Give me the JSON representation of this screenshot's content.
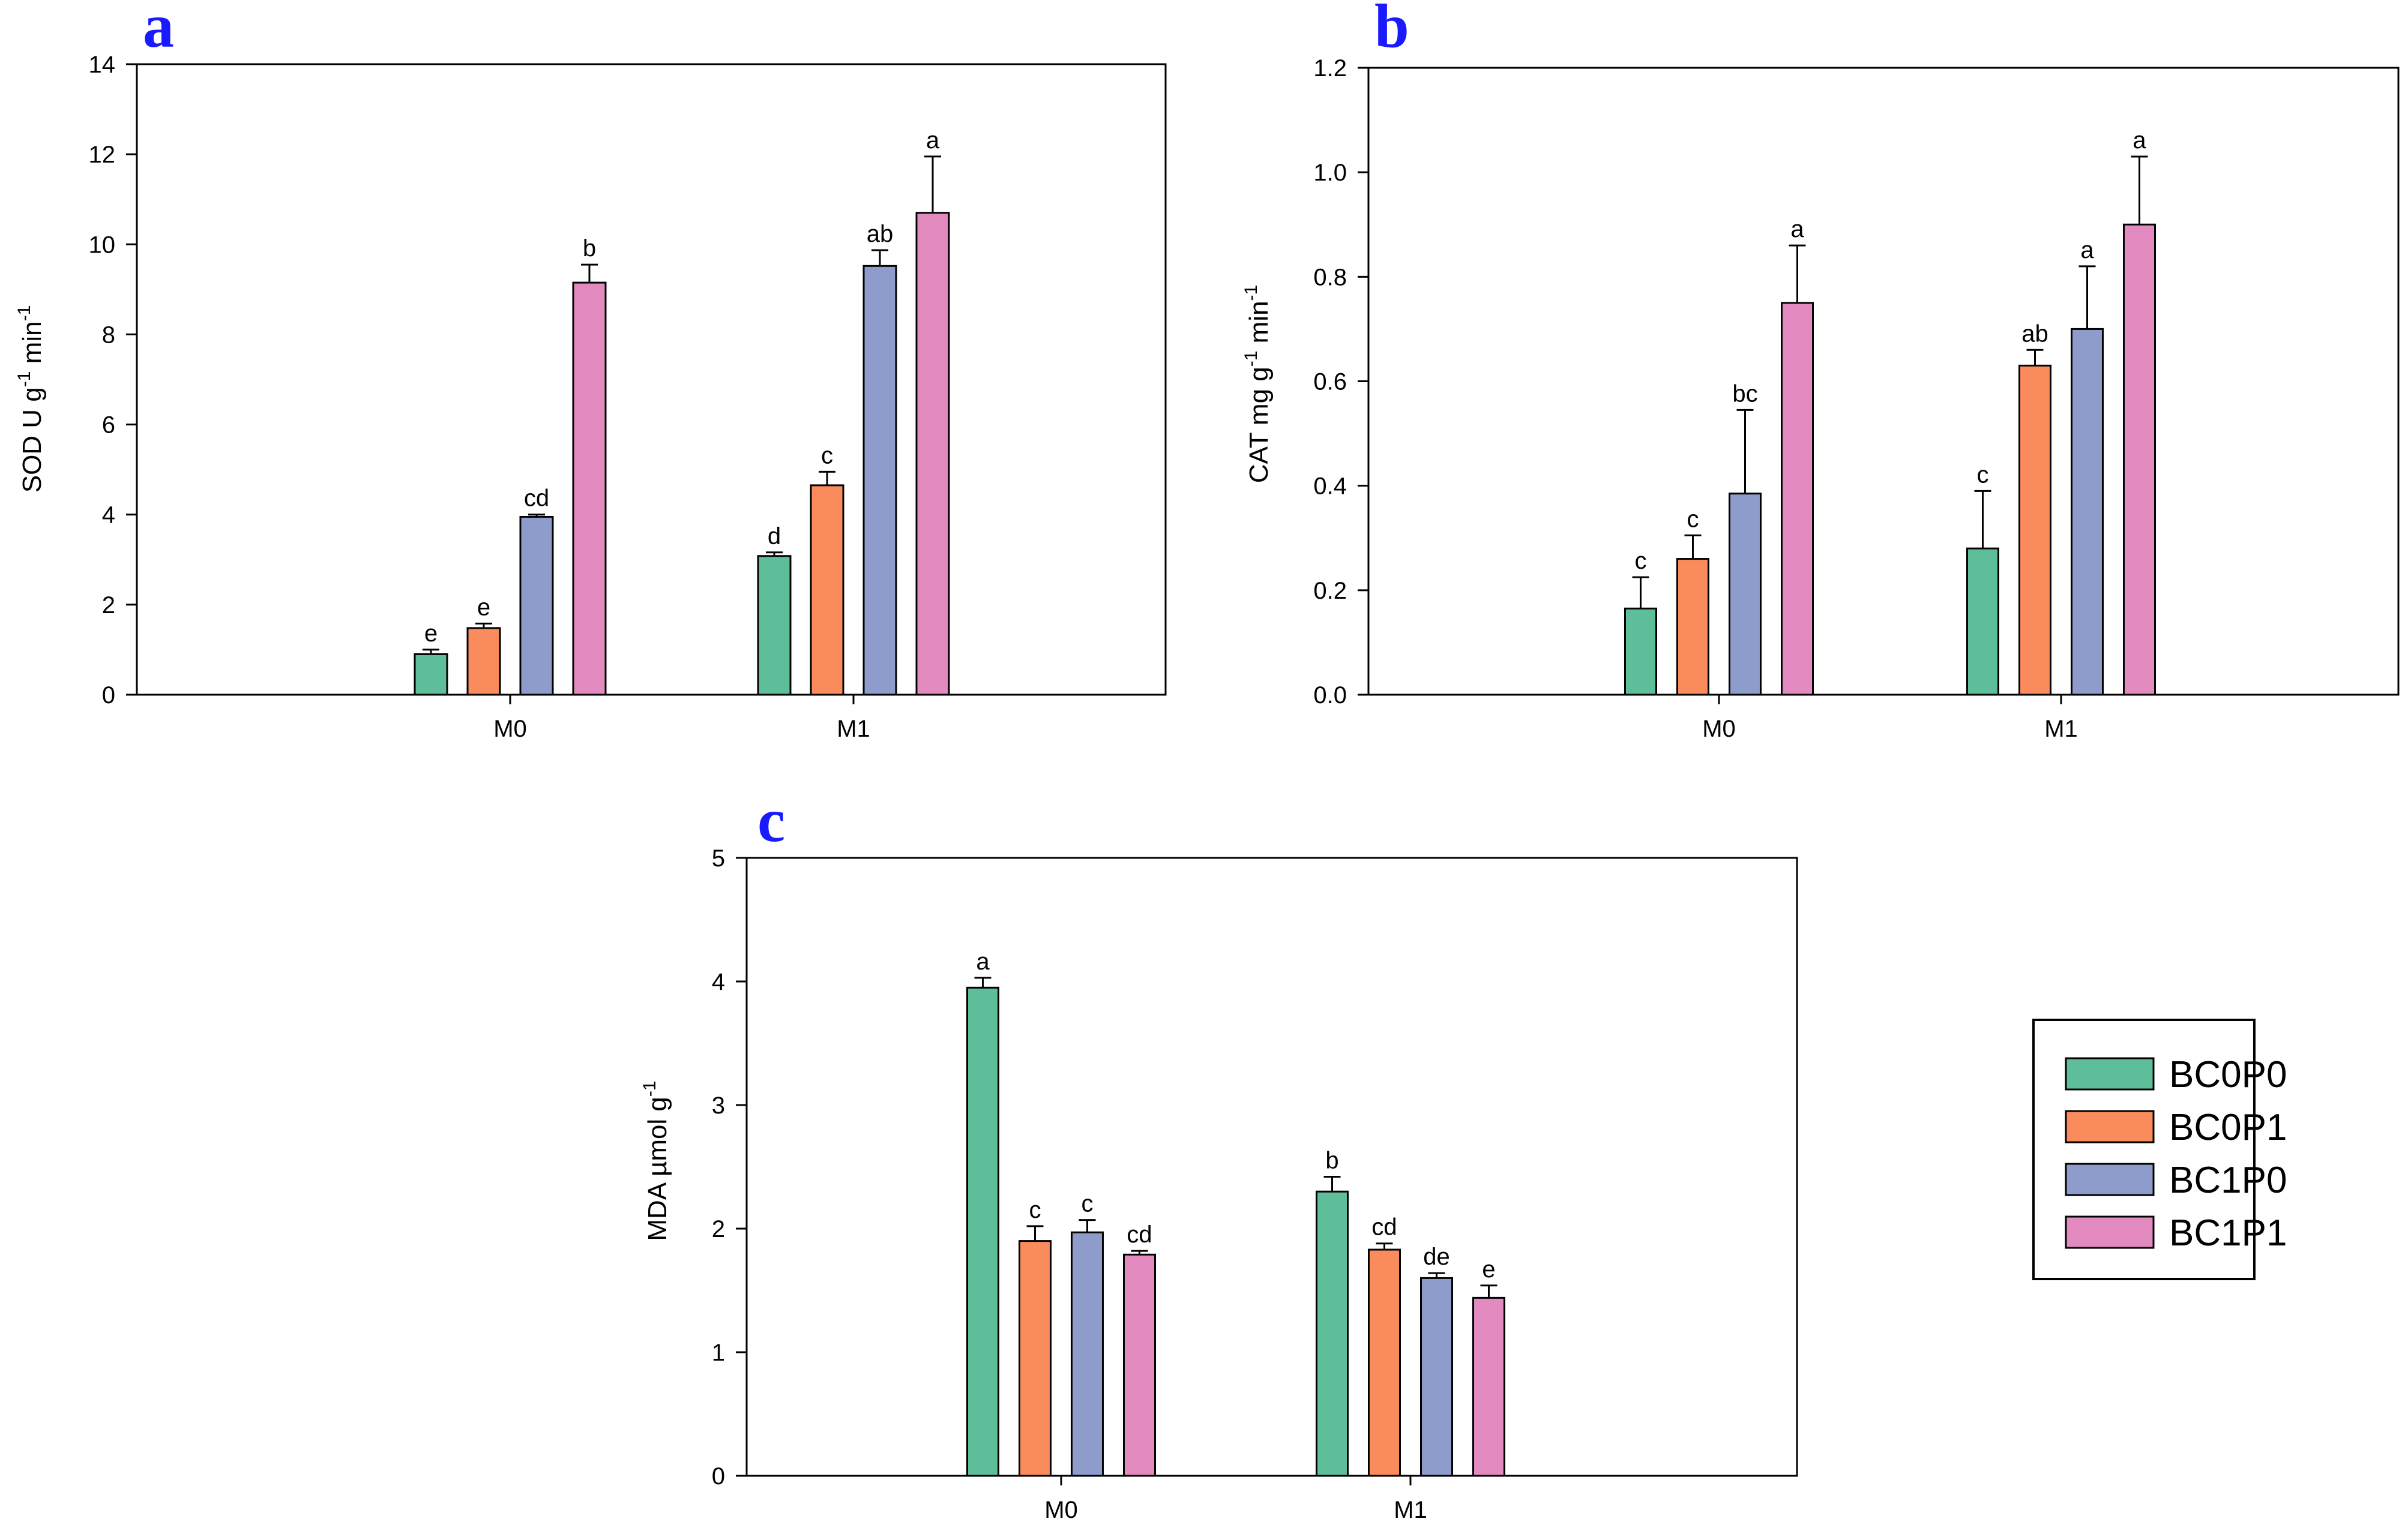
{
  "legend": {
    "entries": [
      {
        "name": "BC0P0",
        "color": "#5fbe9a"
      },
      {
        "name": "BC0P1",
        "color": "#f98b5c"
      },
      {
        "name": "BC1P0",
        "color": "#8e9ccb"
      },
      {
        "name": "BC1P1",
        "color": "#e38bc1"
      }
    ]
  },
  "chart_data": [
    {
      "panel": "a",
      "type": "bar",
      "ylabel": {
        "main": "SOD U g",
        "sup1": "-1",
        "mid": " min",
        "sup2": "-1"
      },
      "ylim": [
        0,
        14
      ],
      "yticks": [
        0,
        2,
        4,
        6,
        8,
        10,
        12,
        14
      ],
      "categories": [
        "M0",
        "M1"
      ],
      "series": [
        {
          "name": "BC0P0",
          "values": [
            0.9,
            3.08
          ],
          "errors": [
            0.1,
            0.08
          ],
          "letters": [
            "e",
            "d"
          ]
        },
        {
          "name": "BC0P1",
          "values": [
            1.48,
            4.65
          ],
          "errors": [
            0.1,
            0.3
          ],
          "letters": [
            "e",
            "c"
          ]
        },
        {
          "name": "BC1P0",
          "values": [
            3.95,
            9.52
          ],
          "errors": [
            0.05,
            0.35
          ],
          "letters": [
            "cd",
            "ab"
          ]
        },
        {
          "name": "BC1P1",
          "values": [
            9.15,
            10.7
          ],
          "errors": [
            0.4,
            1.25
          ],
          "letters": [
            "b",
            "a"
          ]
        }
      ]
    },
    {
      "panel": "b",
      "type": "bar",
      "ylabel": {
        "main": "CAT mg g",
        "sup1": "-1",
        "mid": " min",
        "sup2": "-1"
      },
      "ylim": [
        0,
        1.2
      ],
      "yticks": [
        "0.0",
        "0.2",
        "0.4",
        "0.6",
        "0.8",
        "1.0",
        "1.2"
      ],
      "categories": [
        "M0",
        "M1"
      ],
      "series": [
        {
          "name": "BC0P0",
          "values": [
            0.165,
            0.28
          ],
          "errors": [
            0.06,
            0.11
          ],
          "letters": [
            "c",
            "c"
          ]
        },
        {
          "name": "BC0P1",
          "values": [
            0.26,
            0.63
          ],
          "errors": [
            0.045,
            0.03
          ],
          "letters": [
            "c",
            "ab"
          ]
        },
        {
          "name": "BC1P0",
          "values": [
            0.385,
            0.7
          ],
          "errors": [
            0.16,
            0.12
          ],
          "letters": [
            "bc",
            "a"
          ]
        },
        {
          "name": "BC1P1",
          "values": [
            0.75,
            0.9
          ],
          "errors": [
            0.11,
            0.13
          ],
          "letters": [
            "a",
            "a"
          ]
        }
      ]
    },
    {
      "panel": "c",
      "type": "bar",
      "ylabel": {
        "main": "MDA µmol g",
        "sup1": "-1",
        "mid": "",
        "sup2": ""
      },
      "ylim": [
        0,
        5
      ],
      "yticks": [
        0,
        1,
        2,
        3,
        4,
        5
      ],
      "categories": [
        "M0",
        "M1"
      ],
      "series": [
        {
          "name": "BC0P0",
          "values": [
            3.95,
            2.3
          ],
          "errors": [
            0.08,
            0.12
          ],
          "letters": [
            "a",
            "b"
          ]
        },
        {
          "name": "BC0P1",
          "values": [
            1.9,
            1.83
          ],
          "errors": [
            0.12,
            0.05
          ],
          "letters": [
            "c",
            "cd"
          ]
        },
        {
          "name": "BC1P0",
          "values": [
            1.97,
            1.6
          ],
          "errors": [
            0.1,
            0.04
          ],
          "letters": [
            "c",
            "de"
          ]
        },
        {
          "name": "BC1P1",
          "values": [
            1.79,
            1.44
          ],
          "errors": [
            0.03,
            0.1
          ],
          "letters": [
            "cd",
            "e"
          ]
        }
      ]
    }
  ]
}
